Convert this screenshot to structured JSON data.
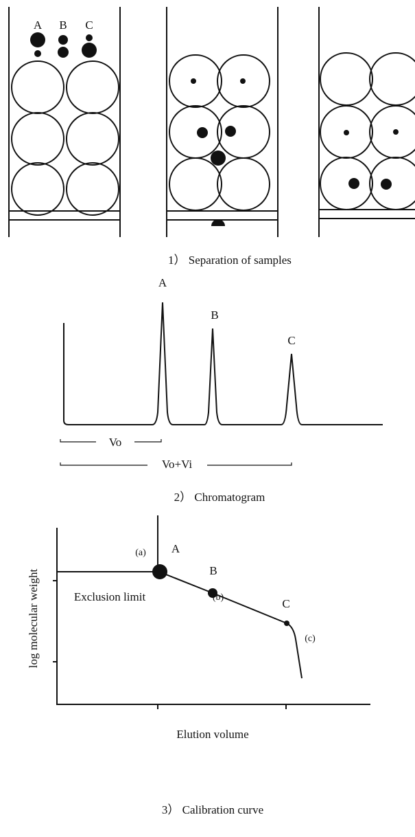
{
  "separation": {
    "labels": [
      "A",
      "B",
      "C"
    ],
    "caption": "1） Separation of samples"
  },
  "chromatogram": {
    "peak_labels": [
      "A",
      "B",
      "C"
    ],
    "vo": "Vo",
    "vo_vi": "Vo+Vi",
    "caption": "2） Chromatogram"
  },
  "calibration": {
    "y_label": "log molecular weight",
    "x_label": "Elution volume",
    "exclusion": "Exclusion limit",
    "points": [
      "(a)",
      "A",
      "B",
      "(b)",
      "C",
      "(c)"
    ],
    "caption": "3） Calibration curve"
  }
}
